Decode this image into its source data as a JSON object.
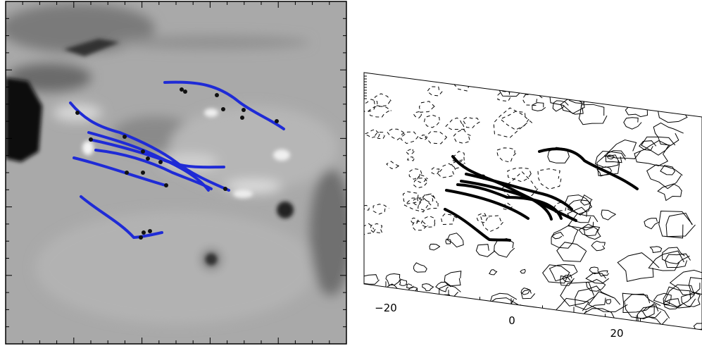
{
  "right_panel": {
    "x_tick_labels": [
      "−20",
      "0",
      "20"
    ]
  }
}
